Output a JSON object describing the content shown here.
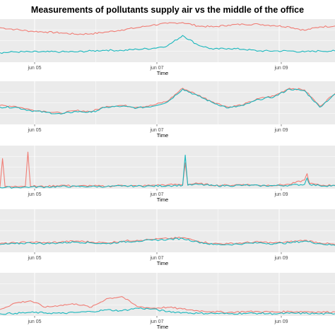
{
  "title": "Measurements of pollutants supply air vs the middle of the office",
  "colors": {
    "supply": "#f07c74",
    "office": "#19b7bd",
    "panel": "#ebebeb",
    "grid": "#ffffff"
  },
  "chart_data": [
    {
      "type": "line",
      "xlabel": "Time",
      "x_ticks": [
        "jun 05",
        "jun 07",
        "jun 09"
      ],
      "xlim": [
        "2016-06-04T00:00",
        "2016-06-09T12:00"
      ],
      "ylim": [
        0,
        100
      ],
      "series": [
        {
          "color": "#f07c74",
          "x": [
            "06-04 00",
            "06-04 06",
            "06-04 12",
            "06-04 18",
            "06-05 00",
            "06-05 06",
            "06-05 12",
            "06-05 18",
            "06-06 00",
            "06-06 06",
            "06-06 12",
            "06-06 18",
            "06-07 00",
            "06-07 06",
            "06-07 12",
            "06-07 18",
            "06-08 00",
            "06-08 06",
            "06-08 12",
            "06-08 18",
            "06-09 00",
            "06-09 06",
            "06-09 12"
          ],
          "values": [
            80,
            76,
            72,
            70,
            68,
            65,
            66,
            70,
            75,
            80,
            86,
            90,
            92,
            84,
            82,
            86,
            88,
            88,
            85,
            82,
            74,
            82,
            84
          ]
        },
        {
          "color": "#19b7bd",
          "x": [
            "06-04 00",
            "06-04 06",
            "06-04 12",
            "06-04 18",
            "06-05 00",
            "06-05 06",
            "06-05 12",
            "06-05 18",
            "06-06 00",
            "06-06 06",
            "06-06 12",
            "06-06 18",
            "06-07 00",
            "06-07 06",
            "06-07 12",
            "06-07 18",
            "06-08 00",
            "06-08 06",
            "06-08 12",
            "06-08 18",
            "06-09 00",
            "06-09 06",
            "06-09 12"
          ],
          "values": [
            22,
            24,
            24,
            24,
            24,
            24,
            26,
            28,
            27,
            30,
            32,
            38,
            62,
            40,
            30,
            32,
            30,
            26,
            26,
            26,
            24,
            26,
            26
          ]
        }
      ]
    },
    {
      "type": "line",
      "xlabel": "Time",
      "x_ticks": [
        "jun 05",
        "jun 07",
        "jun 09"
      ],
      "xlim": [
        "2016-06-04T00:00",
        "2016-06-09T12:00"
      ],
      "ylim": [
        0,
        100
      ],
      "series": [
        {
          "color": "#f07c74",
          "x": [
            "06-04 00",
            "06-04 06",
            "06-04 12",
            "06-04 18",
            "06-05 00",
            "06-05 06",
            "06-05 12",
            "06-05 18",
            "06-06 00",
            "06-06 06",
            "06-06 12",
            "06-06 18",
            "06-07 00",
            "06-07 06",
            "06-07 12",
            "06-07 18",
            "06-08 00",
            "06-08 06",
            "06-08 12",
            "06-08 18",
            "06-09 00",
            "06-09 06",
            "06-09 12"
          ],
          "values": [
            44,
            42,
            34,
            30,
            26,
            32,
            30,
            42,
            44,
            40,
            44,
            54,
            84,
            68,
            52,
            40,
            46,
            60,
            66,
            84,
            80,
            42,
            72
          ]
        },
        {
          "color": "#19b7bd",
          "x": [
            "06-04 00",
            "06-04 06",
            "06-04 12",
            "06-04 18",
            "06-05 00",
            "06-05 06",
            "06-05 12",
            "06-05 18",
            "06-06 00",
            "06-06 06",
            "06-06 12",
            "06-06 18",
            "06-07 00",
            "06-07 06",
            "06-07 12",
            "06-07 18",
            "06-08 00",
            "06-08 06",
            "06-08 12",
            "06-08 18",
            "06-09 00",
            "06-09 06",
            "06-09 12"
          ],
          "values": [
            40,
            40,
            32,
            28,
            24,
            30,
            28,
            40,
            42,
            38,
            42,
            52,
            82,
            66,
            50,
            38,
            44,
            58,
            64,
            82,
            78,
            40,
            70
          ]
        }
      ]
    },
    {
      "type": "line",
      "xlabel": "Time",
      "x_ticks": [
        "jun 05",
        "jun 07",
        "jun 09"
      ],
      "xlim": [
        "2016-06-04T00:00",
        "2016-06-09T12:00"
      ],
      "ylim": [
        0,
        100
      ],
      "series": [
        {
          "color": "#f07c74",
          "x": [
            "06-04 00",
            "06-04 01",
            "06-04 02",
            "06-04 03",
            "06-04 06",
            "06-04 10",
            "06-04 11",
            "06-04 12",
            "06-04 18",
            "06-05 00",
            "06-05 06",
            "06-05 12",
            "06-05 18",
            "06-06 00",
            "06-06 06",
            "06-06 12",
            "06-06 18",
            "06-07 00",
            "06-07 01",
            "06-07 02",
            "06-07 06",
            "06-07 12",
            "06-07 18",
            "06-08 00",
            "06-08 06",
            "06-08 12",
            "06-08 18",
            "06-09 00",
            "06-09 01",
            "06-09 02",
            "06-09 06",
            "06-09 12"
          ],
          "values": [
            4,
            70,
            4,
            5,
            6,
            6,
            85,
            6,
            5,
            8,
            6,
            7,
            5,
            8,
            6,
            8,
            9,
            10,
            60,
            10,
            12,
            8,
            8,
            10,
            8,
            8,
            10,
            20,
            35,
            12,
            8,
            8
          ]
        },
        {
          "color": "#19b7bd",
          "x": [
            "06-04 00",
            "06-04 06",
            "06-04 12",
            "06-04 18",
            "06-05 00",
            "06-05 06",
            "06-05 12",
            "06-05 18",
            "06-06 00",
            "06-06 06",
            "06-06 12",
            "06-06 18",
            "06-07 00",
            "06-07 01",
            "06-07 02",
            "06-07 06",
            "06-07 12",
            "06-07 18",
            "06-08 00",
            "06-08 06",
            "06-08 12",
            "06-08 18",
            "06-09 00",
            "06-09 01",
            "06-09 02",
            "06-09 06",
            "06-09 12"
          ],
          "values": [
            3,
            3,
            4,
            4,
            5,
            5,
            5,
            5,
            6,
            6,
            6,
            7,
            8,
            78,
            8,
            10,
            7,
            7,
            8,
            7,
            7,
            8,
            10,
            25,
            10,
            7,
            7
          ]
        }
      ]
    },
    {
      "type": "line",
      "xlabel": "Time",
      "x_ticks": [
        "jun 05",
        "jun 07",
        "jun 09"
      ],
      "xlim": [
        "2016-06-04T00:00",
        "2016-06-09T12:00"
      ],
      "ylim": [
        0,
        100
      ],
      "series": [
        {
          "color": "#f07c74",
          "x": [
            "06-04 00",
            "06-04 06",
            "06-04 12",
            "06-04 18",
            "06-05 00",
            "06-05 06",
            "06-05 12",
            "06-05 18",
            "06-06 00",
            "06-06 06",
            "06-06 12",
            "06-06 18",
            "06-07 00",
            "06-07 06",
            "06-07 12",
            "06-07 18",
            "06-08 00",
            "06-08 06",
            "06-08 12",
            "06-08 18",
            "06-09 00",
            "06-09 06",
            "06-09 12"
          ],
          "values": [
            20,
            22,
            24,
            22,
            24,
            26,
            24,
            22,
            26,
            28,
            30,
            32,
            34,
            26,
            20,
            20,
            22,
            24,
            22,
            24,
            28,
            22,
            18
          ]
        },
        {
          "color": "#19b7bd",
          "x": [
            "06-04 00",
            "06-04 06",
            "06-04 12",
            "06-04 18",
            "06-05 00",
            "06-05 06",
            "06-05 12",
            "06-05 18",
            "06-06 00",
            "06-06 06",
            "06-06 12",
            "06-06 18",
            "06-07 00",
            "06-07 06",
            "06-07 12",
            "06-07 18",
            "06-08 00",
            "06-08 06",
            "06-08 12",
            "06-08 18",
            "06-09 00",
            "06-09 06",
            "06-09 12"
          ],
          "values": [
            18,
            20,
            22,
            20,
            22,
            24,
            22,
            20,
            24,
            26,
            28,
            30,
            32,
            24,
            18,
            18,
            20,
            22,
            20,
            22,
            26,
            20,
            16
          ]
        }
      ]
    },
    {
      "type": "line",
      "xlabel": "Time",
      "x_ticks": [
        "jun 05",
        "jun 07",
        "jun 09"
      ],
      "xlim": [
        "2016-06-04T00:00",
        "2016-06-09T12:00"
      ],
      "ylim": [
        0,
        100
      ],
      "series": [
        {
          "color": "#f07c74",
          "x": [
            "06-04 00",
            "06-04 06",
            "06-04 12",
            "06-04 18",
            "06-05 00",
            "06-05 06",
            "06-05 12",
            "06-05 18",
            "06-06 00",
            "06-06 06",
            "06-06 12",
            "06-06 18",
            "06-07 00",
            "06-07 06",
            "06-07 12",
            "06-07 18",
            "06-08 00",
            "06-08 06",
            "06-08 12",
            "06-08 18",
            "06-09 00",
            "06-09 06",
            "06-09 12"
          ],
          "values": [
            15,
            30,
            35,
            20,
            25,
            28,
            20,
            40,
            45,
            22,
            18,
            20,
            16,
            12,
            10,
            8,
            10,
            10,
            9,
            10,
            10,
            9,
            9
          ]
        },
        {
          "color": "#19b7bd",
          "x": [
            "06-04 00",
            "06-04 06",
            "06-04 12",
            "06-04 18",
            "06-05 00",
            "06-05 06",
            "06-05 12",
            "06-05 18",
            "06-06 00",
            "06-06 06",
            "06-06 12",
            "06-06 18",
            "06-07 00",
            "06-07 06",
            "06-07 12",
            "06-07 18",
            "06-08 00",
            "06-08 06",
            "06-08 12",
            "06-08 18",
            "06-09 00",
            "06-09 06",
            "06-09 12"
          ],
          "values": [
            5,
            6,
            8,
            7,
            6,
            8,
            10,
            14,
            12,
            18,
            16,
            10,
            8,
            6,
            6,
            5,
            6,
            6,
            5,
            6,
            6,
            5,
            5
          ]
        }
      ]
    }
  ]
}
